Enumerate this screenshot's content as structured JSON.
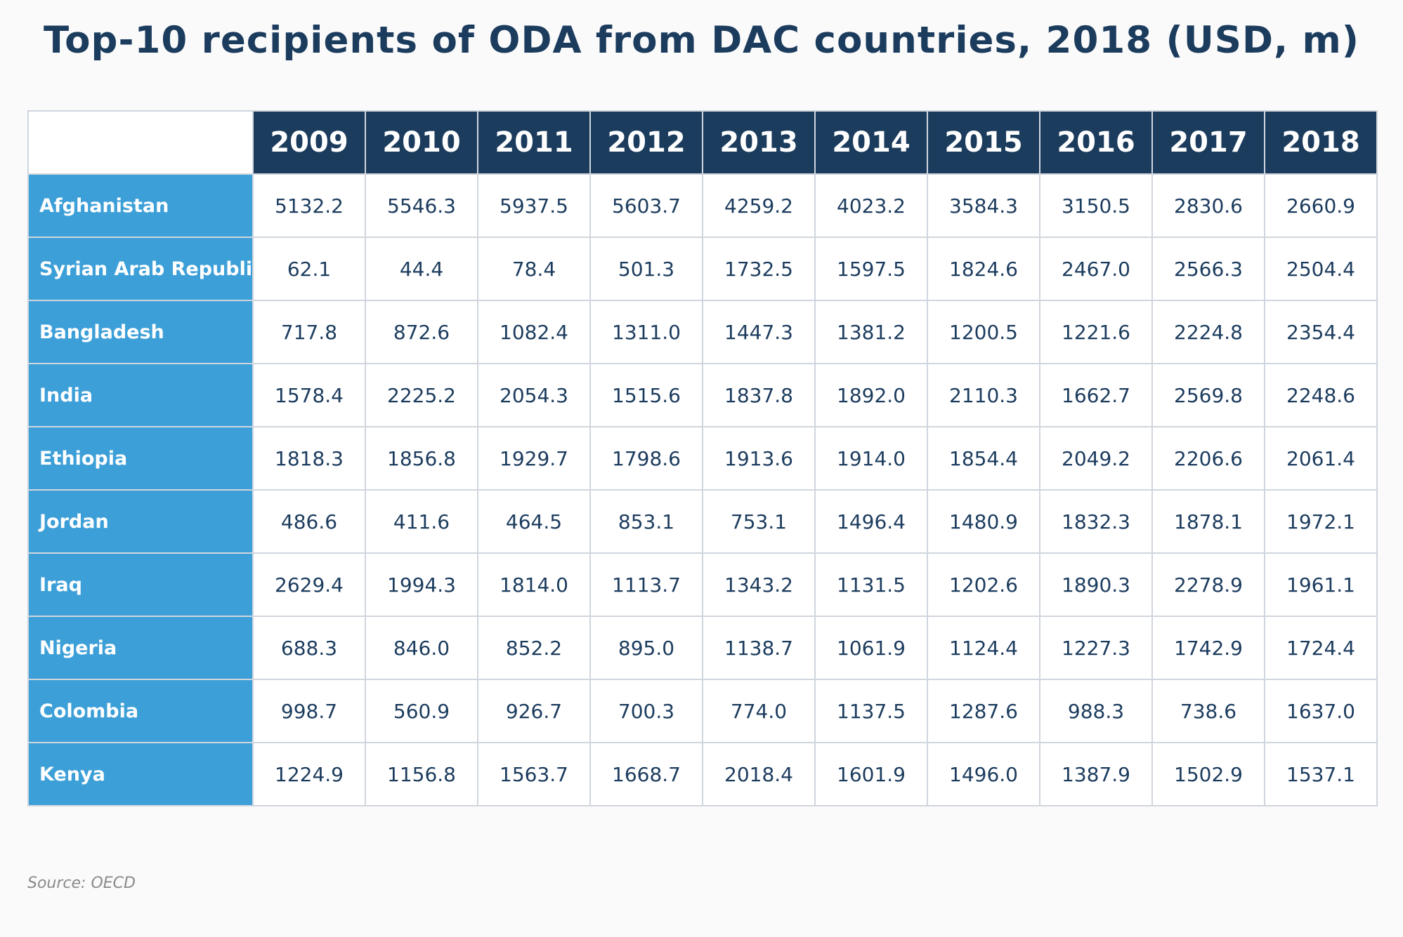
{
  "chart_data": {
    "type": "table",
    "title": "Top-10 recipients of ODA from DAC countries, 2018 (USD, m)",
    "columns": [
      "2009",
      "2010",
      "2011",
      "2012",
      "2013",
      "2014",
      "2015",
      "2016",
      "2017",
      "2018"
    ],
    "rows": [
      {
        "label": "Afghanistan",
        "values": [
          "5132.2",
          "5546.3",
          "5937.5",
          "5603.7",
          "4259.2",
          "4023.2",
          "3584.3",
          "3150.5",
          "2830.6",
          "2660.9"
        ]
      },
      {
        "label": "Syrian Arab Republic",
        "values": [
          "62.1",
          "44.4",
          "78.4",
          "501.3",
          "1732.5",
          "1597.5",
          "1824.6",
          "2467.0",
          "2566.3",
          "2504.4"
        ]
      },
      {
        "label": "Bangladesh",
        "values": [
          "717.8",
          "872.6",
          "1082.4",
          "1311.0",
          "1447.3",
          "1381.2",
          "1200.5",
          "1221.6",
          "2224.8",
          "2354.4"
        ]
      },
      {
        "label": "India",
        "values": [
          "1578.4",
          "2225.2",
          "2054.3",
          "1515.6",
          "1837.8",
          "1892.0",
          "2110.3",
          "1662.7",
          "2569.8",
          "2248.6"
        ]
      },
      {
        "label": "Ethiopia",
        "values": [
          "1818.3",
          "1856.8",
          "1929.7",
          "1798.6",
          "1913.6",
          "1914.0",
          "1854.4",
          "2049.2",
          "2206.6",
          "2061.4"
        ]
      },
      {
        "label": "Jordan",
        "values": [
          "486.6",
          "411.6",
          "464.5",
          "853.1",
          "753.1",
          "1496.4",
          "1480.9",
          "1832.3",
          "1878.1",
          "1972.1"
        ]
      },
      {
        "label": "Iraq",
        "values": [
          "2629.4",
          "1994.3",
          "1814.0",
          "1113.7",
          "1343.2",
          "1131.5",
          "1202.6",
          "1890.3",
          "2278.9",
          "1961.1"
        ]
      },
      {
        "label": "Nigeria",
        "values": [
          "688.3",
          "846.0",
          "852.2",
          "895.0",
          "1138.7",
          "1061.9",
          "1124.4",
          "1227.3",
          "1742.9",
          "1724.4"
        ]
      },
      {
        "label": "Colombia",
        "values": [
          "998.7",
          "560.9",
          "926.7",
          "700.3",
          "774.0",
          "1137.5",
          "1287.6",
          "988.3",
          "738.6",
          "1637.0"
        ]
      },
      {
        "label": "Kenya",
        "values": [
          "1224.9",
          "1156.8",
          "1563.7",
          "1668.7",
          "2018.4",
          "1601.9",
          "1496.0",
          "1387.9",
          "1502.9",
          "1537.1"
        ]
      }
    ],
    "source": "Source: OECD"
  },
  "colors": {
    "header_background": "#1c3c5e",
    "row_label_background": "#3d9fd8",
    "title_text": "#1c3c5e",
    "cell_text": "#1c3c5e",
    "grid_line": "#d0d6de",
    "page_background": "#fafafa"
  }
}
